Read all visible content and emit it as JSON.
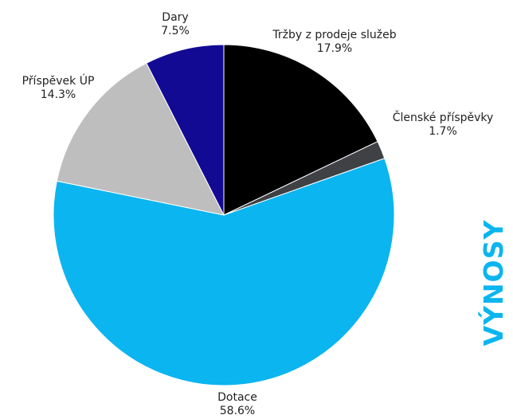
{
  "chart_data": {
    "type": "pie",
    "title": "VÝNOSY",
    "start_angle_deg": 0,
    "direction": "clockwise",
    "slices": [
      {
        "label": "Tržby z prodeje služeb",
        "value": 17.9,
        "value_label": "17.9%",
        "color": "#000000"
      },
      {
        "label": "Členské příspěvky",
        "value": 1.7,
        "value_label": "1.7%",
        "color": "#3f4144"
      },
      {
        "label": "Dotace",
        "value": 58.6,
        "value_label": "58.6%",
        "color": "#0bb5ef"
      },
      {
        "label": "Příspěvek ÚP",
        "value": 14.3,
        "value_label": "14.3%",
        "color": "#bebebe"
      },
      {
        "label": "Dary",
        "value": 7.5,
        "value_label": "7.5%",
        "color": "#130a94"
      }
    ]
  }
}
